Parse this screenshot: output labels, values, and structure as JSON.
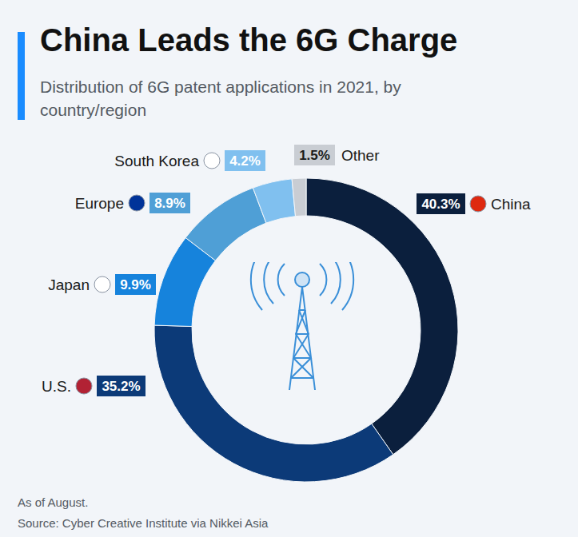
{
  "chart_data": {
    "type": "pie",
    "title": "China Leads the 6G Charge",
    "subtitle": "Distribution of 6G patent applications in 2021, by country/region",
    "categories": [
      "China",
      "U.S.",
      "Japan",
      "Europe",
      "South Korea",
      "Other"
    ],
    "values": [
      40.3,
      35.2,
      9.9,
      8.9,
      4.2,
      1.5
    ],
    "value_labels": [
      "40.3%",
      "35.2%",
      "9.9%",
      "8.9%",
      "4.2%",
      "1.5%"
    ],
    "colors": [
      "#0b1f3d",
      "#0c3a78",
      "#1683dc",
      "#4f9fd6",
      "#80c0ef",
      "#c9cdd3"
    ],
    "data_labels": true,
    "note": "As of August.",
    "source": "Source: Cyber Creative Institute via Nikkei Asia"
  }
}
